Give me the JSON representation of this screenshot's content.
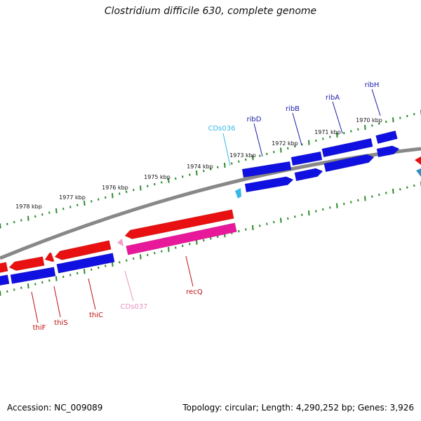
{
  "title": "Clostridium difficile 630, complete genome",
  "accession": "Accession: NC_009089",
  "summary": "Topology: circular; Length: 4,290,252 bp; Genes: 3,926",
  "scale_labels": [
    "1970 kbp",
    "1971 kbp",
    "1972 kbp",
    "1973 kbp",
    "1974 kbp",
    "1975 kbp",
    "1976 kbp",
    "1977 kbp",
    "1978 kbp"
  ],
  "gene_labels": {
    "top": [
      "ribH",
      "ribA",
      "ribB",
      "ribD",
      "CDs036"
    ],
    "bottom": [
      "thiF",
      "thiS",
      "thiC",
      "CDs037",
      "recQ"
    ]
  },
  "colors": {
    "forward_gene": "#1010e0",
    "reverse_gene": "#e81010",
    "rna_gene": "#e8189a",
    "pseudo_gene": "#f0a0c8",
    "small_cds": "#38b8e8",
    "backbone": "#888888",
    "tick": "#2a8a2a",
    "label_blue": "#1a1aa8",
    "label_red": "#c01010",
    "label_cyan": "#38b8e8",
    "label_pink": "#e890c0"
  }
}
